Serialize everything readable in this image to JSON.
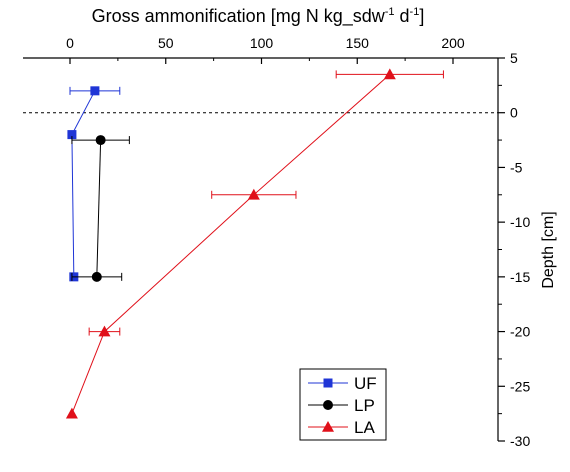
{
  "chart_data": {
    "type": "scatter",
    "xlabel": "Gross ammonification [mg N kg_sdw",
    "xlabel_sup1": "-1",
    "xlabel_mid": " d",
    "xlabel_sup2": "-1",
    "xlabel_end": "]",
    "ylabel": "Depth [cm]",
    "xlim": [
      -12,
      225
    ],
    "ylim": [
      -30,
      5
    ],
    "x_ticks": [
      0,
      50,
      100,
      150,
      200
    ],
    "y_ticks": [
      5,
      0,
      -5,
      -10,
      -15,
      -20,
      -25,
      -30
    ],
    "zero_line": 0,
    "legend_position": "bottom-center",
    "series": [
      {
        "name": "UF",
        "color": "#1f35d6",
        "marker": "square",
        "points": [
          {
            "x": 13,
            "y": 2,
            "xerr": 13
          },
          {
            "x": 1,
            "y": -2
          },
          {
            "x": 2,
            "y": -15
          }
        ]
      },
      {
        "name": "LP",
        "color": "#000000",
        "marker": "circle",
        "points": [
          {
            "x": 16,
            "y": -2.5,
            "xerr": 15
          },
          {
            "x": 14,
            "y": -15,
            "xerr": 13
          }
        ]
      },
      {
        "name": "LA",
        "color": "#e0101a",
        "marker": "triangle",
        "points": [
          {
            "x": 167,
            "y": 3.5,
            "xerr": 28
          },
          {
            "x": 96,
            "y": -7.5,
            "xerr": 22
          },
          {
            "x": 18,
            "y": -20,
            "xerr": 8
          },
          {
            "x": 1,
            "y": -27.5
          }
        ]
      }
    ]
  }
}
